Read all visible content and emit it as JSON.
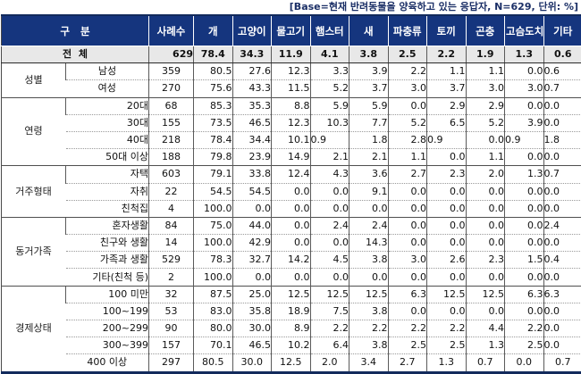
{
  "note": "[Base=현재 반려동물을 양육하고 있는 응답자, N=629, 단위: %]",
  "colors": {
    "header_bg": "#15357e",
    "header_text": "#ffffff",
    "total_row_bg": "#e8e8e8",
    "outer_border": "#122a5c",
    "grid_line": "#5a5a5a",
    "note_text": "#1b2f66"
  },
  "table": {
    "corner_header": "구   분",
    "columns": [
      "사례수",
      "개",
      "고양이",
      "물고기",
      "햄스터",
      "새",
      "파충류",
      "토끼",
      "곤충",
      "고슴도치",
      "기타"
    ],
    "total_row": {
      "label": "전  체",
      "n": "629",
      "values": [
        "78.4",
        "34.3",
        "11.9",
        "4.1",
        "3.8",
        "2.5",
        "2.2",
        "1.9",
        "1.3",
        "0.6"
      ]
    },
    "groups": [
      {
        "label": "성별",
        "rows": [
          {
            "label": "남성",
            "label_align": "c",
            "n": "359",
            "values": [
              "80.5",
              "27.6",
              "12.3",
              "3.3",
              "3.9",
              "2.2",
              "1.1",
              "1.1",
              "0.0",
              "0.6"
            ]
          },
          {
            "label": "여성",
            "label_align": "c",
            "n": "270",
            "values": [
              "75.6",
              "43.3",
              "11.5",
              "5.2",
              "3.7",
              "3.0",
              "3.7",
              "3.0",
              "3.0",
              "0.7"
            ]
          }
        ]
      },
      {
        "label": "연령",
        "rows": [
          {
            "label": "20대",
            "n": "68",
            "values": [
              "85.3",
              "35.3",
              "8.8",
              "5.9",
              "5.9",
              "0.0",
              "2.9",
              "2.9",
              "0.0",
              "0.0"
            ]
          },
          {
            "label": "30대",
            "n": "155",
            "values": [
              "73.5",
              "46.5",
              "12.3",
              "10.3",
              "7.7",
              "5.2",
              "6.5",
              "5.2",
              "3.9",
              "0.0"
            ]
          },
          {
            "label": "40대",
            "n": "218",
            "values": [
              "78.4",
              "34.4",
              "10.1",
              "0.9",
              "1.8",
              "2.8",
              "0.9",
              "0.0",
              "0.9",
              "1.8"
            ],
            "value_aligns": [
              "r",
              "r",
              "r",
              "l",
              "r",
              "r",
              "l",
              "r",
              "l",
              "l"
            ]
          },
          {
            "label": "50대 이상",
            "n": "188",
            "values": [
              "79.8",
              "23.9",
              "14.9",
              "2.1",
              "2.1",
              "1.1",
              "0.0",
              "1.1",
              "0.0",
              "0.0"
            ]
          }
        ]
      },
      {
        "label": "거주형태",
        "rows": [
          {
            "label": "자택",
            "n": "603",
            "values": [
              "79.1",
              "33.8",
              "12.4",
              "4.3",
              "3.6",
              "2.7",
              "2.3",
              "2.0",
              "1.3",
              "0.7"
            ]
          },
          {
            "label": "자취",
            "n": "22",
            "values": [
              "54.5",
              "54.5",
              "0.0",
              "0.0",
              "9.1",
              "0.0",
              "0.0",
              "0.0",
              "0.0",
              "0.0"
            ]
          },
          {
            "label": "친척집",
            "n": "4",
            "values": [
              "100.0",
              "0.0",
              "0.0",
              "0.0",
              "0.0",
              "0.0",
              "0.0",
              "0.0",
              "0.0",
              "0.0"
            ]
          }
        ]
      },
      {
        "label": "동거가족",
        "rows": [
          {
            "label": "혼자생활",
            "n": "84",
            "values": [
              "75.0",
              "44.0",
              "0.0",
              "2.4",
              "2.4",
              "0.0",
              "0.0",
              "0.0",
              "0.0",
              "2.4"
            ]
          },
          {
            "label": "친구와 생활",
            "n": "14",
            "values": [
              "100.0",
              "42.9",
              "0.0",
              "0.0",
              "14.3",
              "0.0",
              "0.0",
              "0.0",
              "0.0",
              "0.0"
            ]
          },
          {
            "label": "가족과 생활",
            "n": "529",
            "values": [
              "78.3",
              "32.7",
              "14.2",
              "4.5",
              "3.8",
              "3.0",
              "2.6",
              "2.3",
              "1.5",
              "0.4"
            ]
          },
          {
            "label": "기타(친척 등)",
            "n": "2",
            "values": [
              "100.0",
              "0.0",
              "0.0",
              "0.0",
              "0.0",
              "0.0",
              "0.0",
              "0.0",
              "0.0",
              "0.0"
            ]
          }
        ]
      },
      {
        "label": "경제상태",
        "rows": [
          {
            "label": "100 미만",
            "n": "32",
            "values": [
              "87.5",
              "25.0",
              "12.5",
              "12.5",
              "12.5",
              "6.3",
              "12.5",
              "12.5",
              "6.3",
              "6.3"
            ]
          },
          {
            "label": "100~199",
            "n": "53",
            "values": [
              "83.0",
              "35.8",
              "18.9",
              "7.5",
              "3.8",
              "0.0",
              "0.0",
              "0.0",
              "0.0",
              "0.0"
            ]
          },
          {
            "label": "200~299",
            "n": "90",
            "values": [
              "80.0",
              "30.0",
              "8.9",
              "2.2",
              "2.2",
              "2.2",
              "2.2",
              "4.4",
              "2.2",
              "0.0"
            ]
          },
          {
            "label": "300~399",
            "n": "157",
            "values": [
              "70.1",
              "46.5",
              "10.2",
              "6.4",
              "3.8",
              "2.5",
              "2.5",
              "1.3",
              "2.5",
              "0.0"
            ]
          },
          {
            "label": "400 이상",
            "label_align": "c",
            "row_align": "c",
            "n": "297",
            "values": [
              "80.5",
              "30.0",
              "12.5",
              "2.0",
              "3.4",
              "2.7",
              "1.3",
              "0.7",
              "0.0",
              "0.7"
            ]
          }
        ]
      }
    ]
  }
}
